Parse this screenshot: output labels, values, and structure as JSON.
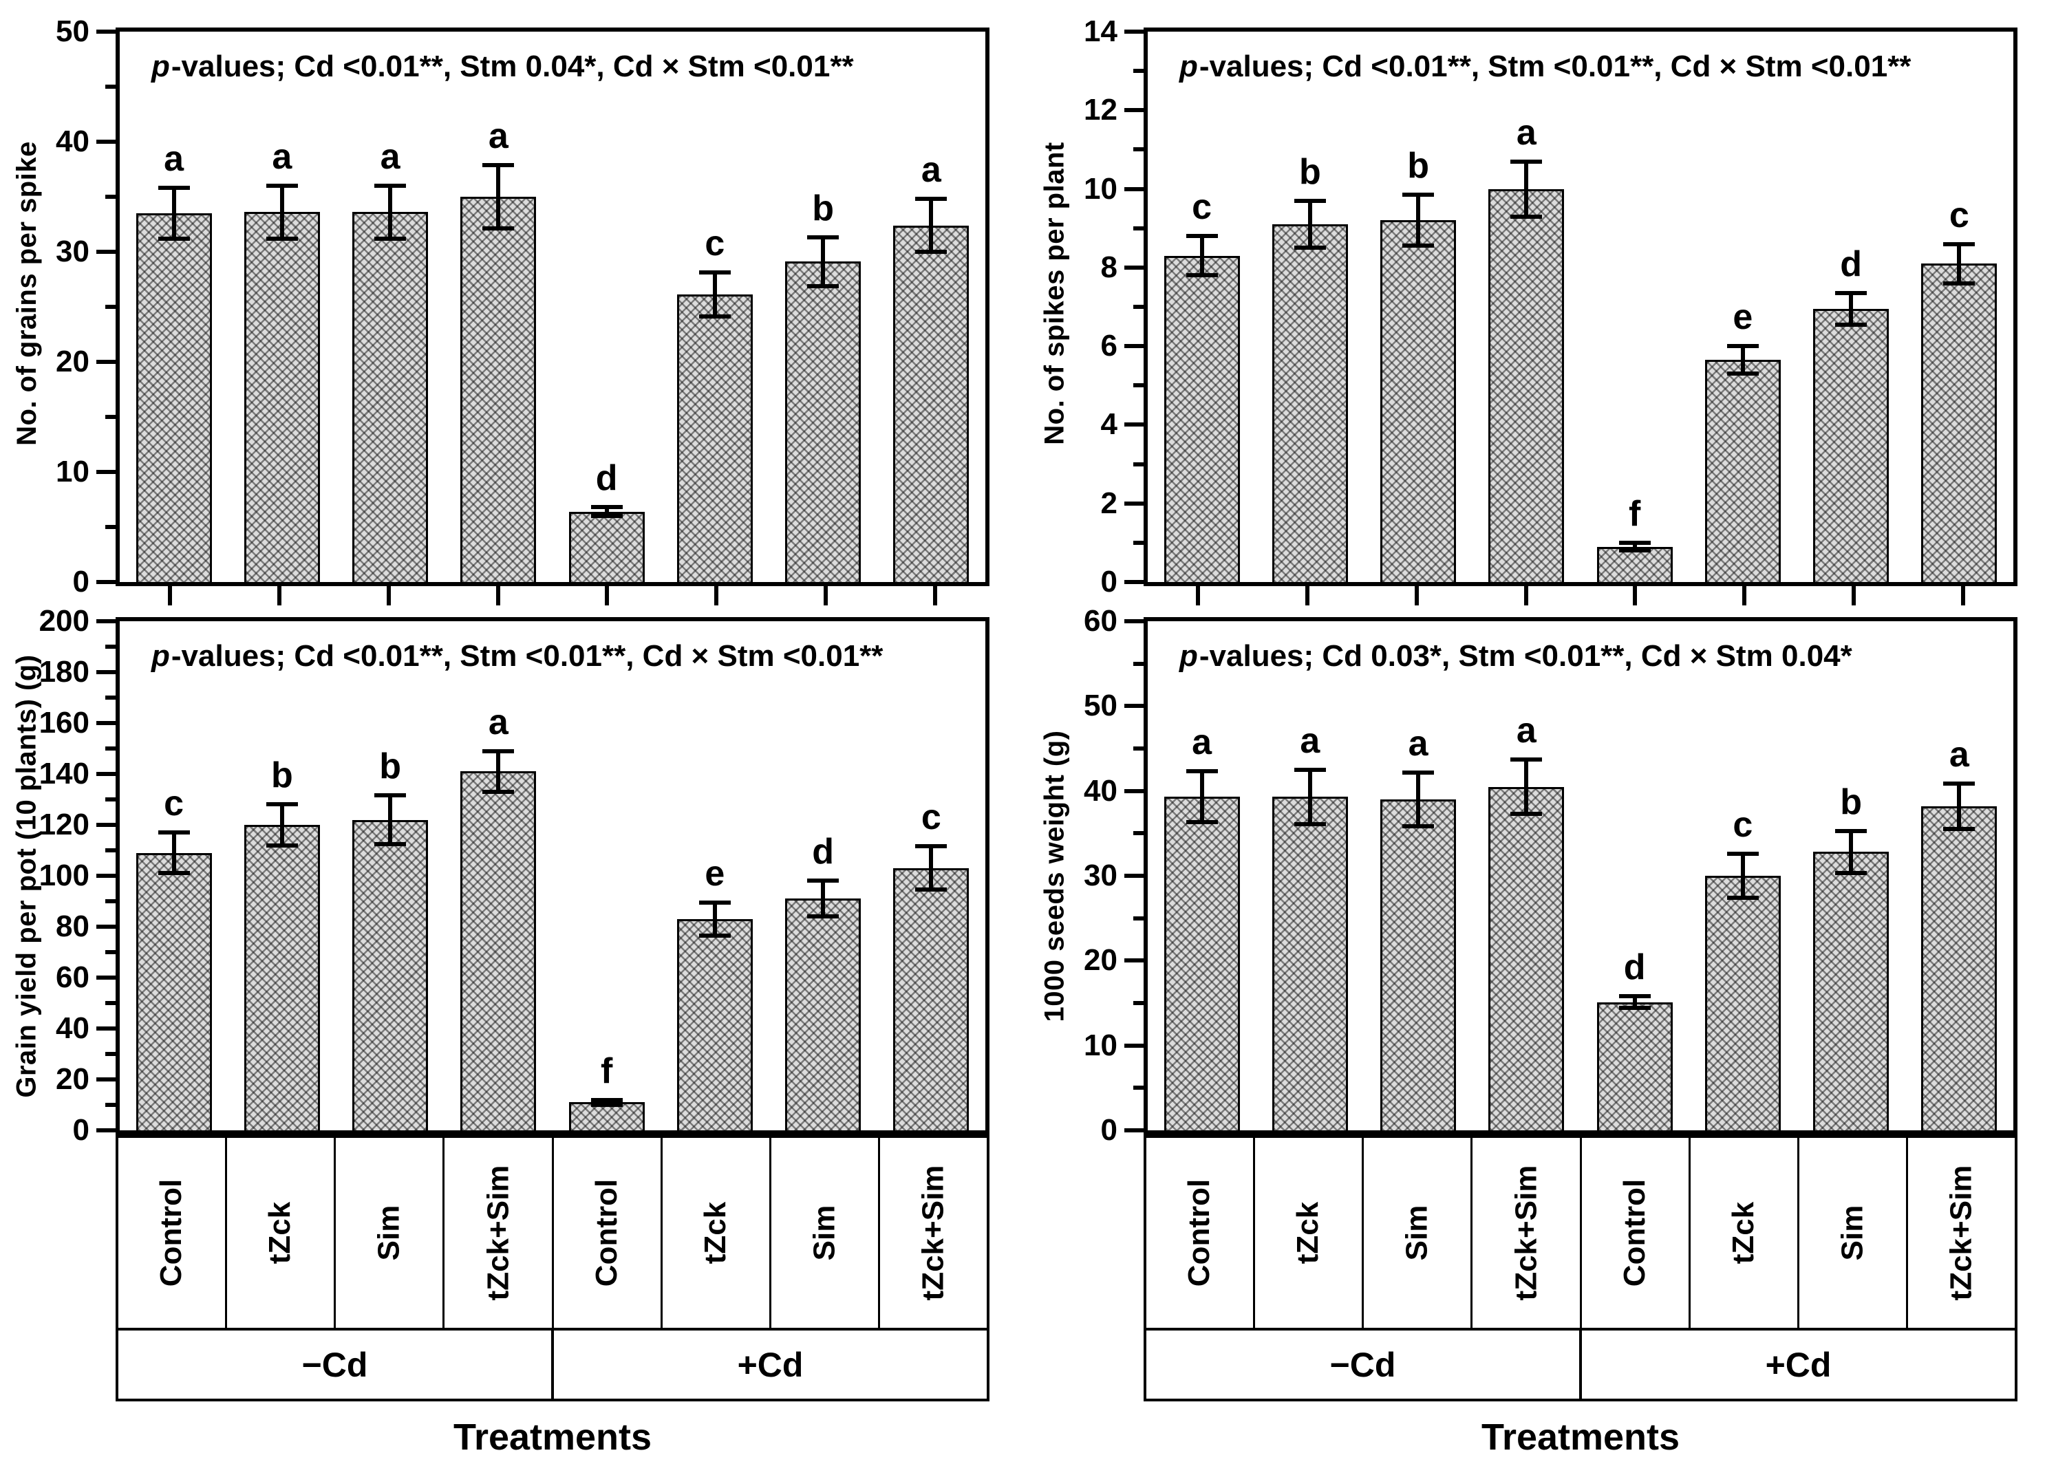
{
  "figure": {
    "xlabel": "Treatments",
    "group_labels": [
      "−Cd",
      "+Cd"
    ],
    "treatment_labels": [
      "Control",
      "tZck",
      "Sim",
      "tZck+Sim"
    ],
    "colors": {
      "background": "#ffffff",
      "axis": "#000000",
      "bar_fill": "#dcdcdc",
      "bar_hatch": "#3c3c3c",
      "text": "#000000"
    }
  },
  "chart_data": [
    {
      "id": "grains_per_spike",
      "type": "bar",
      "position": "top-left",
      "annotation": "p-values; Cd <0.01**, Stm 0.04*, Cd × Stm <0.01**",
      "ylabel": "No. of grains per spike",
      "xlabel": "Treatments",
      "ylim": [
        0,
        50
      ],
      "ytick_major": 10,
      "ytick_minor": 5,
      "grid": false,
      "categories": [
        "Control",
        "tZck",
        "Sim",
        "tZck+Sim",
        "Control",
        "tZck",
        "Sim",
        "tZck+Sim"
      ],
      "groups": [
        "−Cd",
        "−Cd",
        "−Cd",
        "−Cd",
        "+Cd",
        "+Cd",
        "+Cd",
        "+Cd"
      ],
      "values": [
        33.5,
        33.6,
        33.6,
        35.0,
        6.4,
        26.1,
        29.1,
        32.4
      ],
      "errors": [
        2.3,
        2.4,
        2.4,
        2.9,
        0.4,
        2.0,
        2.2,
        2.4
      ],
      "sig_letters": [
        "a",
        "a",
        "a",
        "a",
        "d",
        "c",
        "b",
        "a"
      ]
    },
    {
      "id": "spikes_per_plant",
      "type": "bar",
      "position": "top-right",
      "annotation": "p-values; Cd <0.01**, Stm <0.01**, Cd × Stm <0.01**",
      "ylabel": "No. of spikes per plant",
      "xlabel": "Treatments",
      "ylim": [
        0,
        14
      ],
      "ytick_major": 2,
      "ytick_minor": 1,
      "grid": false,
      "categories": [
        "Control",
        "tZck",
        "Sim",
        "tZck+Sim",
        "Control",
        "tZck",
        "Sim",
        "tZck+Sim"
      ],
      "groups": [
        "−Cd",
        "−Cd",
        "−Cd",
        "−Cd",
        "+Cd",
        "+Cd",
        "+Cd",
        "+Cd"
      ],
      "values": [
        8.3,
        9.1,
        9.2,
        10.0,
        0.9,
        5.65,
        6.95,
        8.1
      ],
      "errors": [
        0.5,
        0.6,
        0.65,
        0.7,
        0.1,
        0.35,
        0.4,
        0.5
      ],
      "sig_letters": [
        "c",
        "b",
        "b",
        "a",
        "f",
        "e",
        "d",
        "c"
      ]
    },
    {
      "id": "grain_yield_per_pot",
      "type": "bar",
      "position": "bottom-left",
      "annotation": "p-values; Cd <0.01**, Stm <0.01**, Cd × Stm <0.01**",
      "ylabel": "Grain yield per pot (10 plants) (g)",
      "xlabel": "Treatments",
      "ylim": [
        0,
        200
      ],
      "ytick_major": 20,
      "ytick_minor": 10,
      "grid": false,
      "categories": [
        "Control",
        "tZck",
        "Sim",
        "tZck+Sim",
        "Control",
        "tZck",
        "Sim",
        "tZck+Sim"
      ],
      "groups": [
        "−Cd",
        "−Cd",
        "−Cd",
        "−Cd",
        "+Cd",
        "+Cd",
        "+Cd",
        "+Cd"
      ],
      "values": [
        109,
        120,
        122,
        141,
        11,
        83,
        91,
        103
      ],
      "errors": [
        8,
        8,
        9.5,
        8,
        1,
        6.5,
        7,
        8.5
      ],
      "sig_letters": [
        "c",
        "b",
        "b",
        "a",
        "f",
        "e",
        "d",
        "c"
      ]
    },
    {
      "id": "thousand_seeds_weight",
      "type": "bar",
      "position": "bottom-right",
      "annotation": "p-values; Cd 0.03*, Stm <0.01**, Cd × Stm 0.04*",
      "ylabel": "1000 seeds weight (g)",
      "xlabel": "Treatments",
      "ylim": [
        0,
        60
      ],
      "ytick_major": 10,
      "ytick_minor": 5,
      "grid": false,
      "categories": [
        "Control",
        "tZck",
        "Sim",
        "tZck+Sim",
        "Control",
        "tZck",
        "Sim",
        "tZck+Sim"
      ],
      "groups": [
        "−Cd",
        "−Cd",
        "−Cd",
        "−Cd",
        "+Cd",
        "+Cd",
        "+Cd",
        "+Cd"
      ],
      "values": [
        39.3,
        39.3,
        39.0,
        40.5,
        15.1,
        30.0,
        32.8,
        38.2
      ],
      "errors": [
        3.0,
        3.2,
        3.2,
        3.2,
        0.7,
        2.6,
        2.5,
        2.7
      ],
      "sig_letters": [
        "a",
        "a",
        "a",
        "a",
        "d",
        "c",
        "b",
        "a"
      ]
    }
  ]
}
